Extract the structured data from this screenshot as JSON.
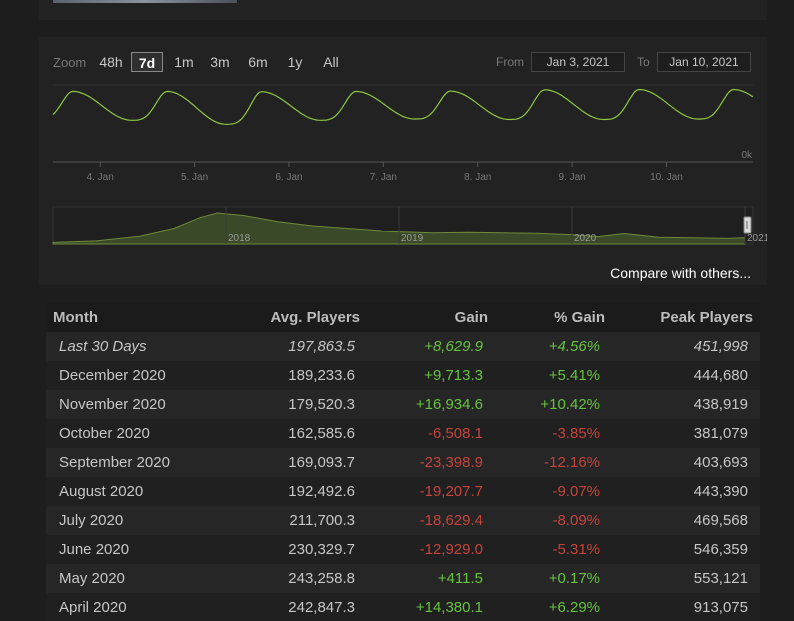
{
  "zoom": {
    "label": "Zoom",
    "options": [
      "48h",
      "7d",
      "1m",
      "3m",
      "6m",
      "1y",
      "All"
    ],
    "active": "7d"
  },
  "range": {
    "from_label": "From",
    "from_value": "Jan 3, 2021",
    "to_label": "To",
    "to_value": "Jan 10, 2021"
  },
  "compare_label": "Compare with others...",
  "colors": {
    "line": "#8dc63f",
    "navigator_fill": "#3a4a28",
    "positive": "#66c23f",
    "negative": "#c5433b"
  },
  "chart_data": [
    {
      "type": "line",
      "x_start": "Jan 3, 2021 12:00",
      "x_end": "Jan 10, 2021 22:00",
      "x_ticks": [
        "4. Jan",
        "5. Jan",
        "6. Jan",
        "7. Jan",
        "8. Jan",
        "9. Jan",
        "10. Jan"
      ],
      "y_tick_labels": [
        "0k"
      ],
      "ylim": [
        0,
        480000
      ],
      "days": [
        {
          "trough": 265000,
          "peak": 440000
        },
        {
          "trough": 260000,
          "peak": 440000
        },
        {
          "trough": 235000,
          "peak": 438000
        },
        {
          "trough": 260000,
          "peak": 440000
        },
        {
          "trough": 268000,
          "peak": 442000
        },
        {
          "trough": 265000,
          "peak": 450000
        },
        {
          "trough": 265000,
          "peak": 452000
        },
        {
          "trough": 268000,
          "peak": 452000
        }
      ],
      "grid": true
    },
    {
      "type": "area",
      "role": "navigator",
      "x_tick_labels": [
        "2018",
        "2019",
        "2020",
        "2021"
      ],
      "x": [
        2017.0,
        2017.25,
        2017.5,
        2017.7,
        2017.85,
        2017.95,
        2018.1,
        2018.3,
        2018.5,
        2018.7,
        2018.9,
        2019.0,
        2019.2,
        2019.4,
        2019.6,
        2019.8,
        2020.0,
        2020.15,
        2020.3,
        2020.5,
        2020.7,
        2020.9,
        2021.0
      ],
      "values": [
        0.05,
        0.1,
        0.25,
        0.5,
        0.85,
        1.0,
        0.92,
        0.72,
        0.58,
        0.5,
        0.42,
        0.4,
        0.36,
        0.38,
        0.36,
        0.35,
        0.3,
        0.24,
        0.34,
        0.22,
        0.2,
        0.18,
        0.2
      ]
    }
  ],
  "table": {
    "headers": [
      "Month",
      "Avg. Players",
      "Gain",
      "% Gain",
      "Peak Players"
    ],
    "rows": [
      {
        "month": "Last 30 Days",
        "avg": "197,863.5",
        "gain": "+8,629.9",
        "pct": "+4.56%",
        "peak": "451,998",
        "dir": "pos",
        "italic": true
      },
      {
        "month": "December 2020",
        "avg": "189,233.6",
        "gain": "+9,713.3",
        "pct": "+5.41%",
        "peak": "444,680",
        "dir": "pos"
      },
      {
        "month": "November 2020",
        "avg": "179,520.3",
        "gain": "+16,934.6",
        "pct": "+10.42%",
        "peak": "438,919",
        "dir": "pos"
      },
      {
        "month": "October 2020",
        "avg": "162,585.6",
        "gain": "-6,508.1",
        "pct": "-3.85%",
        "peak": "381,079",
        "dir": "neg"
      },
      {
        "month": "September 2020",
        "avg": "169,093.7",
        "gain": "-23,398.9",
        "pct": "-12.16%",
        "peak": "403,693",
        "dir": "neg"
      },
      {
        "month": "August 2020",
        "avg": "192,492.6",
        "gain": "-19,207.7",
        "pct": "-9.07%",
        "peak": "443,390",
        "dir": "neg"
      },
      {
        "month": "July 2020",
        "avg": "211,700.3",
        "gain": "-18,629.4",
        "pct": "-8.09%",
        "peak": "469,568",
        "dir": "neg"
      },
      {
        "month": "June 2020",
        "avg": "230,329.7",
        "gain": "-12,929.0",
        "pct": "-5.31%",
        "peak": "546,359",
        "dir": "neg"
      },
      {
        "month": "May 2020",
        "avg": "243,258.8",
        "gain": "+411.5",
        "pct": "+0.17%",
        "peak": "553,121",
        "dir": "pos"
      },
      {
        "month": "April 2020",
        "avg": "242,847.3",
        "gain": "+14,380.1",
        "pct": "+6.29%",
        "peak": "913,075",
        "dir": "pos"
      }
    ]
  }
}
